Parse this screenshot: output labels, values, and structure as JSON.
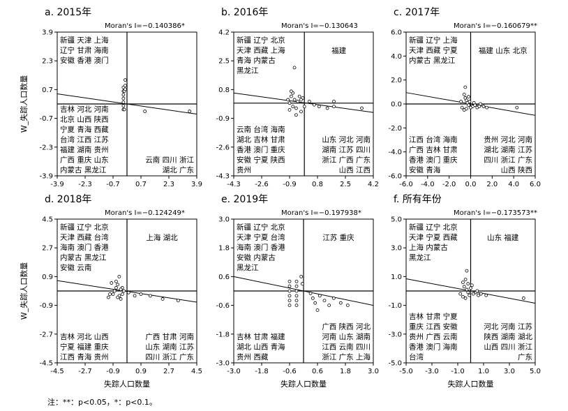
{
  "chart_data": [
    {
      "type": "scatter",
      "title": "a. 2015年",
      "moran": "Moran's I=−0.140386*",
      "ylabel": "W_失踪人口数量",
      "xlabel": "",
      "xlim": [
        -3.9,
        3.9
      ],
      "ylim": [
        -3.9,
        3.9
      ],
      "xticks": [
        "-3.9",
        "-2.3",
        "-0.7",
        "0.7",
        "2.3",
        "3.9"
      ],
      "yticks": [
        "3.9",
        "2.3",
        "0.7",
        "-0.7",
        "-2.3",
        "-3.9"
      ],
      "points": [
        [
          -0.2,
          0.5
        ],
        [
          -0.2,
          0.3
        ],
        [
          -0.2,
          0.1
        ],
        [
          -0.2,
          -0.1
        ],
        [
          -0.2,
          -0.3
        ],
        [
          -0.2,
          0.7
        ],
        [
          -0.2,
          0.9
        ],
        [
          -0.15,
          0.7
        ],
        [
          -0.1,
          1.3
        ],
        [
          -0.1,
          1.0
        ],
        [
          -0.1,
          0.8
        ],
        [
          -0.15,
          -0.3
        ],
        [
          1.0,
          -0.4
        ],
        [
          3.5,
          -0.4
        ]
      ],
      "fit": [
        [
          -3.9,
          0.55
        ],
        [
          3.9,
          -0.55
        ]
      ],
      "quadrants": {
        "HH": [],
        "LH": [
          "新疆 天津 上海",
          "辽宁 甘肃 海南",
          "安徽 香港 澳门"
        ],
        "LL": [
          "吉林 河北 河南",
          "北京 山西 陕西",
          "宁夏 青海 西藏",
          "台湾 江西 江苏",
          "福建 湖南 贵州",
          "广西 重庆 山东",
          "内蒙古 黑龙江"
        ],
        "HL": [
          "云南 四川 浙江",
          "湖北 广东"
        ]
      }
    },
    {
      "type": "scatter",
      "title": "b. 2016年",
      "moran": "Moran's I=−0.130643",
      "ylabel": "",
      "xlabel": "",
      "xlim": [
        -4.3,
        4.2
      ],
      "ylim": [
        -4.3,
        4.2
      ],
      "xticks": [
        "-4.3",
        "-2.6",
        "-0.9",
        "0.8",
        "2.5",
        "4.2"
      ],
      "yticks": [
        "4.2",
        "2.5",
        "0.8",
        "-0.9",
        "-2.6",
        "-4.3"
      ],
      "points": [
        [
          -0.9,
          0.0
        ],
        [
          -0.8,
          0.4
        ],
        [
          -0.7,
          0.6
        ],
        [
          -0.6,
          0.2
        ],
        [
          -0.5,
          -0.3
        ],
        [
          -0.4,
          0.1
        ],
        [
          -0.3,
          0.4
        ],
        [
          -0.2,
          -0.5
        ],
        [
          -0.1,
          0.3
        ],
        [
          0.0,
          -0.2
        ],
        [
          -0.6,
          2.1
        ],
        [
          -0.9,
          -0.4
        ],
        [
          -0.5,
          -0.7
        ],
        [
          -0.2,
          0.2
        ],
        [
          0.3,
          0.1
        ],
        [
          0.6,
          -0.1
        ],
        [
          0.9,
          -0.2
        ],
        [
          1.4,
          -0.3
        ],
        [
          1.8,
          -0.2
        ],
        [
          1.8,
          0.1
        ],
        [
          3.5,
          -0.3
        ],
        [
          -0.8,
          0.7
        ],
        [
          -0.7,
          -0.2
        ],
        [
          -1.0,
          0.2
        ]
      ],
      "fit": [
        [
          -4.3,
          0.6
        ],
        [
          4.2,
          -0.55
        ]
      ],
      "quadrants": {
        "HH": [
          "福建"
        ],
        "LH": [
          "新疆 辽宁 北京",
          "天津 西藏 上海",
          "青海 内蒙古",
          "黑龙江"
        ],
        "LL": [
          "云南 台湾 海南",
          "湖北 吉林 甘肃",
          "香港 澳门 重庆",
          "安徽 宁夏 陕西",
          "贵州"
        ],
        "HL": [
          "山东 河北 河南",
          "湖南 江苏 四川",
          "浙江 广西 广东",
          "山西 江西"
        ]
      }
    },
    {
      "type": "scatter",
      "title": "c. 2017年",
      "moran": "Moran's I=−0.160679**",
      "ylabel": "",
      "xlabel": "",
      "xlim": [
        -6.0,
        6.0
      ],
      "ylim": [
        -6.0,
        6.0
      ],
      "xticks": [
        "-6.0",
        "-4.0",
        "-2.0",
        "0.0",
        "2.0",
        "4.0",
        "6.0"
      ],
      "yticks": [
        "6.0",
        "4.0",
        "2.0",
        "0.0",
        "-2.0",
        "-4.0",
        "-6.0"
      ],
      "points": [
        [
          -0.5,
          1.4
        ],
        [
          -0.6,
          0.8
        ],
        [
          -0.5,
          0.5
        ],
        [
          -0.4,
          0.3
        ],
        [
          -0.3,
          0.1
        ],
        [
          -0.2,
          -0.1
        ],
        [
          -0.1,
          0.2
        ],
        [
          0.0,
          -0.3
        ],
        [
          0.2,
          -0.2
        ],
        [
          0.4,
          -0.1
        ],
        [
          0.6,
          -0.3
        ],
        [
          0.8,
          -0.2
        ],
        [
          -0.8,
          -0.3
        ],
        [
          -0.6,
          -0.5
        ],
        [
          -0.4,
          -0.4
        ],
        [
          1.2,
          -0.2
        ],
        [
          1.5,
          -0.3
        ],
        [
          4.3,
          -0.3
        ],
        [
          -0.9,
          0.2
        ],
        [
          -0.2,
          0.6
        ],
        [
          0.3,
          0.1
        ],
        [
          0.9,
          0.0
        ]
      ],
      "fit": [
        [
          -6.0,
          0.95
        ],
        [
          6.0,
          -0.95
        ]
      ],
      "quadrants": {
        "HH": [
          "福建 山东 北京"
        ],
        "LH": [
          "新疆 辽宁 上海",
          "天津 西藏 宁夏",
          "内蒙古 黑龙江"
        ],
        "LL": [
          "江西 台湾 海南",
          "广西 吉林 甘肃",
          "香港 澳门 重庆",
          "安徽 青海"
        ],
        "HL": [
          "贵州 河北 河南",
          "湖北 湖南 江苏",
          "四川 浙江 广东",
          "山西 陕西"
        ]
      }
    },
    {
      "type": "scatter",
      "title": "d. 2018年",
      "moran": "Moran's I=−0.124249*",
      "ylabel": "W_失踪人口数量",
      "xlabel": "失踪人口数量",
      "xlim": [
        -4.5,
        4.5
      ],
      "ylim": [
        -4.5,
        4.5
      ],
      "xticks": [
        "-4.5",
        "-2.7",
        "-0.9",
        "0.9",
        "2.7",
        "4.5"
      ],
      "yticks": [
        "4.5",
        "2.7",
        "0.9",
        "-0.9",
        "-2.7",
        "-4.5"
      ],
      "points": [
        [
          -0.5,
          0.9
        ],
        [
          -0.6,
          0.4
        ],
        [
          -0.7,
          0.2
        ],
        [
          -0.8,
          0.0
        ],
        [
          -0.9,
          -0.2
        ],
        [
          -0.5,
          -0.3
        ],
        [
          -0.4,
          -0.5
        ],
        [
          -0.3,
          0.2
        ],
        [
          -0.2,
          0.0
        ],
        [
          -0.6,
          -0.4
        ],
        [
          -1.2,
          -0.4
        ],
        [
          -1.1,
          -0.2
        ],
        [
          -1.0,
          0.5
        ],
        [
          -0.4,
          0.1
        ],
        [
          0.1,
          -0.1
        ],
        [
          0.5,
          -0.3
        ],
        [
          0.9,
          -0.2
        ],
        [
          1.5,
          -0.3
        ],
        [
          2.3,
          -0.5
        ],
        [
          3.3,
          -0.6
        ],
        [
          -0.3,
          -0.2
        ],
        [
          -0.7,
          0.6
        ]
      ],
      "fit": [
        [
          -4.5,
          0.65
        ],
        [
          4.5,
          -0.7
        ]
      ],
      "quadrants": {
        "HH": [
          "上海 湖北"
        ],
        "LH": [
          "新疆 辽宁 北京",
          "天津 西藏 台湾",
          "海南 澳门 香港",
          "内蒙古 黑龙江",
          "安徽 云南"
        ],
        "LL": [
          "吉林 河北 山西",
          "宁夏 福建 重庆",
          "江西 青海 贵州"
        ],
        "HL": [
          "广西 甘肃 河南",
          "山东 湖南 江苏",
          "四川 浙江 广东"
        ]
      }
    },
    {
      "type": "scatter",
      "title": "e. 2019年",
      "moran": "Moran's I=−0.197938*",
      "ylabel": "",
      "xlabel": "失踪人口数量",
      "xlim": [
        -3.0,
        3.0
      ],
      "ylim": [
        -3.0,
        3.0
      ],
      "xticks": [
        "-3.0",
        "-1.8",
        "-0.6",
        "0.6",
        "1.8",
        "3.0"
      ],
      "yticks": [
        "3.0",
        "1.8",
        "0.6",
        "-0.6",
        "-1.8",
        "-3.0"
      ],
      "points": [
        [
          -0.6,
          0.4
        ],
        [
          -0.6,
          0.2
        ],
        [
          -0.6,
          0.0
        ],
        [
          -0.6,
          -0.2
        ],
        [
          -0.6,
          -0.4
        ],
        [
          -0.6,
          -0.6
        ],
        [
          -0.3,
          0.4
        ],
        [
          -0.3,
          0.2
        ],
        [
          -0.3,
          0.0
        ],
        [
          -0.3,
          -0.2
        ],
        [
          -0.3,
          -0.4
        ],
        [
          -0.3,
          -0.6
        ],
        [
          -0.1,
          0.6
        ],
        [
          -0.05,
          0.3
        ],
        [
          0.3,
          -0.1
        ],
        [
          0.4,
          -0.3
        ],
        [
          0.5,
          -0.5
        ],
        [
          0.7,
          -0.2
        ],
        [
          0.6,
          -0.8
        ],
        [
          0.9,
          -0.4
        ],
        [
          1.1,
          -0.6
        ],
        [
          1.3,
          -0.3
        ],
        [
          1.6,
          -0.5
        ],
        [
          1.9,
          -0.6
        ]
      ],
      "fit": [
        [
          -3.0,
          0.6
        ],
        [
          3.0,
          -0.6
        ]
      ],
      "quadrants": {
        "HH": [
          "江苏 重庆"
        ],
        "LH": [
          "新疆 辽宁 北京",
          "天津 宁夏 台湾",
          "海南 澳门 香港",
          "安徽 内蒙古",
          "黑龙江"
        ],
        "LL": [
          "吉林 甘肃 福建",
          "湖北 山西 青海",
          "贵州 西藏"
        ],
        "HL": [
          "广西 陕西 河北",
          "河南 山东 湖南",
          "江西 云南 四川",
          "浙江 广东 上海"
        ]
      }
    },
    {
      "type": "scatter",
      "title": "f. 所有年份",
      "moran": "Moran's I=−0.173573**",
      "ylabel": "",
      "xlabel": "失踪人口数量",
      "xlim": [
        -5.0,
        5.0
      ],
      "ylim": [
        -5.0,
        5.0
      ],
      "xticks": [
        "-5.0",
        "-3.0",
        "-1.0",
        "1.0",
        "3.0",
        "5.0"
      ],
      "yticks": [
        "5.0",
        "3.0",
        "1.0",
        "-1.0",
        "-3.0",
        "-5.0"
      ],
      "points": [
        [
          -0.3,
          1.4
        ],
        [
          -0.4,
          0.8
        ],
        [
          -0.6,
          0.6
        ],
        [
          -0.5,
          0.3
        ],
        [
          -0.3,
          0.1
        ],
        [
          -0.2,
          -0.1
        ],
        [
          -0.1,
          -0.3
        ],
        [
          0.0,
          0.2
        ],
        [
          0.2,
          -0.2
        ],
        [
          0.4,
          -0.1
        ],
        [
          0.6,
          -0.3
        ],
        [
          0.8,
          -0.2
        ],
        [
          1.2,
          -0.3
        ],
        [
          -0.8,
          -0.2
        ],
        [
          -0.6,
          -0.4
        ],
        [
          -0.4,
          -0.5
        ],
        [
          0.1,
          0.4
        ],
        [
          4.1,
          -0.5
        ],
        [
          -0.2,
          0.5
        ],
        [
          0.5,
          0.0
        ]
      ],
      "fit": [
        [
          -5.0,
          0.85
        ],
        [
          5.0,
          -0.85
        ]
      ],
      "quadrants": {
        "HH": [
          "山东 福建"
        ],
        "LH": [
          "新疆 辽宁 北京",
          "天津 宁夏 西藏",
          "上海 内蒙古",
          "黑龙江"
        ],
        "LL": [
          "吉林 甘肃 宁夏",
          "重庆 江西 安徽",
          "贵州 广西 云南",
          "香港 澳门 海南",
          "台湾"
        ],
        "HL": [
          "河北 河南 江苏",
          "陕西 湖南 湖北",
          "山西 四川 浙江",
          "广东"
        ]
      }
    }
  ],
  "footnote": "注：**：p<0.05，*：p<0.1。"
}
